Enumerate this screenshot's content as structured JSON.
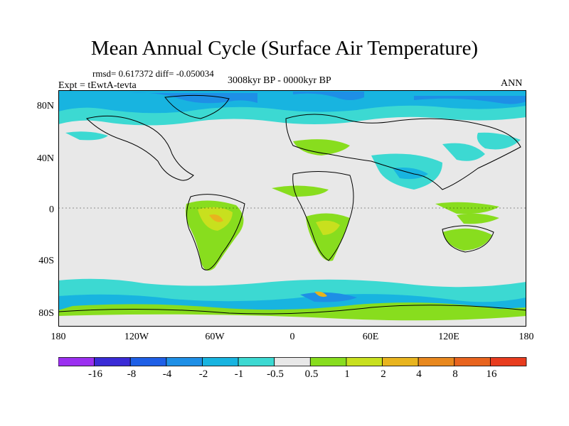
{
  "title": "Mean Annual Cycle (Surface Air Temperature)",
  "stats": "rmsd= 0.617372 diff= -0.050034",
  "experiment": "Expt = tEwtA-tevta",
  "period": "3008kyr BP - 0000kyr BP",
  "season": "ANN",
  "map": {
    "lat_labels": [
      "80N",
      "40N",
      "0",
      "40S",
      "80S"
    ],
    "lon_labels": [
      "180",
      "120W",
      "60W",
      "0",
      "60E",
      "120E",
      "180"
    ]
  },
  "colorbar": {
    "labels": [
      "-16",
      "-8",
      "-4",
      "-2",
      "-1",
      "-0.5",
      "0.5",
      "1",
      "2",
      "4",
      "8",
      "16"
    ],
    "colors": [
      "#9b30f0",
      "#3a2bd6",
      "#1e5fe6",
      "#1e8fe6",
      "#18b4e0",
      "#3cd9d2",
      "#e8e8e8",
      "#88dd1e",
      "#c8e01e",
      "#e8b41e",
      "#e8881e",
      "#e8641e",
      "#e83c1e"
    ]
  },
  "colors": {
    "land_neutral": "#e8e8e8",
    "cool_light": "#3cd9d2",
    "cool_mid": "#18b4e0",
    "cool_deep": "#1e8fe6",
    "warm_light": "#88dd1e",
    "warm_mid": "#c8e01e",
    "warm_strong": "#e8b41e"
  }
}
